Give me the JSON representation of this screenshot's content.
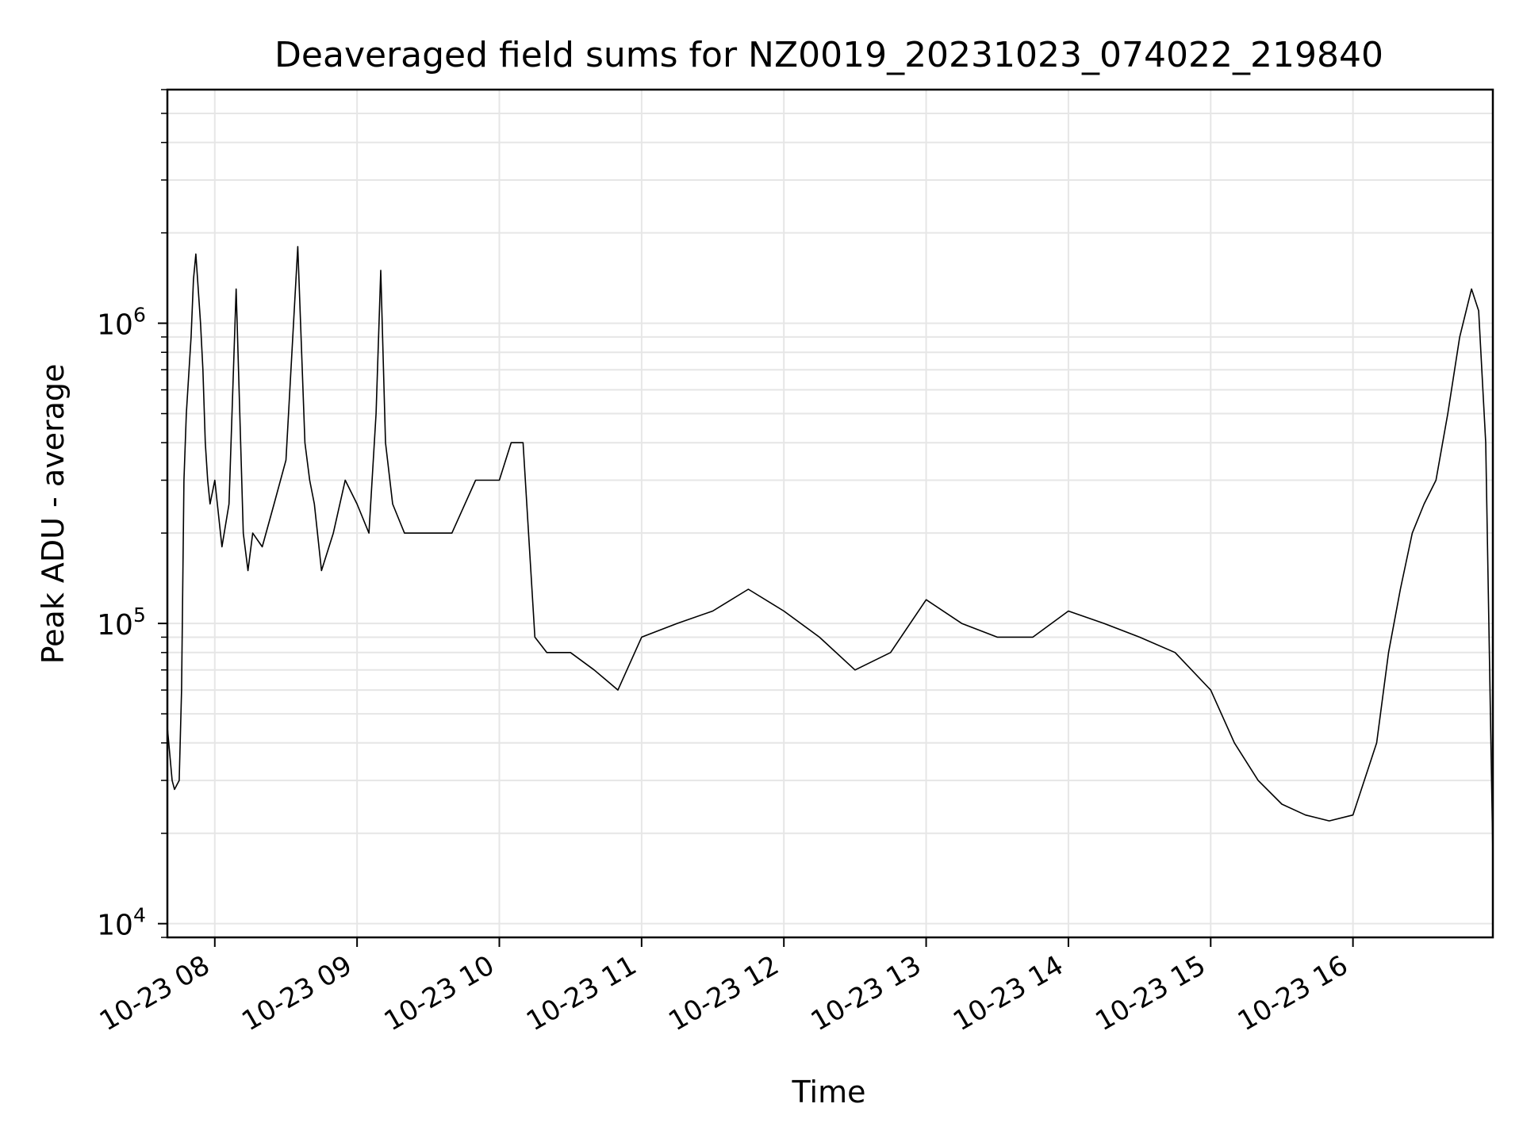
{
  "chart_data": {
    "type": "line",
    "title": "Deaveraged field sums for NZ0019_20231023_074022_219840",
    "xlabel": "Time",
    "ylabel": "Peak ADU - average",
    "yscale": "log",
    "grid": true,
    "colors": {
      "line": "#000000",
      "grid": "#e6e6e6",
      "axes": "#000000"
    },
    "x_ticks": [
      {
        "value": "2023-10-23T08:00",
        "label": "10-23 08"
      },
      {
        "value": "2023-10-23T09:00",
        "label": "10-23 09"
      },
      {
        "value": "2023-10-23T10:00",
        "label": "10-23 10"
      },
      {
        "value": "2023-10-23T11:00",
        "label": "10-23 11"
      },
      {
        "value": "2023-10-23T12:00",
        "label": "10-23 12"
      },
      {
        "value": "2023-10-23T13:00",
        "label": "10-23 13"
      },
      {
        "value": "2023-10-23T14:00",
        "label": "10-23 14"
      },
      {
        "value": "2023-10-23T15:00",
        "label": "10-23 15"
      },
      {
        "value": "2023-10-23T16:00",
        "label": "10-23 16"
      }
    ],
    "xlim": [
      "2023-10-23T07:40",
      "2023-10-23T16:59"
    ],
    "y_ticks": [
      {
        "value": 10000,
        "base": "10",
        "exp": "4"
      },
      {
        "value": 100000,
        "base": "10",
        "exp": "5"
      },
      {
        "value": 1000000,
        "base": "10",
        "exp": "6"
      }
    ],
    "ylim": [
      9000,
      6000000
    ],
    "series": [
      {
        "x": [
          "2023-10-23T07:40",
          "2023-10-23T07:42",
          "2023-10-23T07:43",
          "2023-10-23T07:45",
          "2023-10-23T07:46",
          "2023-10-23T07:47",
          "2023-10-23T07:48",
          "2023-10-23T07:50",
          "2023-10-23T07:51",
          "2023-10-23T07:52",
          "2023-10-23T07:53",
          "2023-10-23T07:54",
          "2023-10-23T07:55",
          "2023-10-23T07:56",
          "2023-10-23T07:57",
          "2023-10-23T07:58",
          "2023-10-23T08:00",
          "2023-10-23T08:03",
          "2023-10-23T08:06",
          "2023-10-23T08:09",
          "2023-10-23T08:12",
          "2023-10-23T08:14",
          "2023-10-23T08:16",
          "2023-10-23T08:20",
          "2023-10-23T08:25",
          "2023-10-23T08:30",
          "2023-10-23T08:35",
          "2023-10-23T08:38",
          "2023-10-23T08:40",
          "2023-10-23T08:42",
          "2023-10-23T08:45",
          "2023-10-23T08:50",
          "2023-10-23T08:55",
          "2023-10-23T09:00",
          "2023-10-23T09:05",
          "2023-10-23T09:08",
          "2023-10-23T09:10",
          "2023-10-23T09:12",
          "2023-10-23T09:15",
          "2023-10-23T09:20",
          "2023-10-23T09:30",
          "2023-10-23T09:40",
          "2023-10-23T09:50",
          "2023-10-23T10:00",
          "2023-10-23T10:05",
          "2023-10-23T10:10",
          "2023-10-23T10:15",
          "2023-10-23T10:20",
          "2023-10-23T10:30",
          "2023-10-23T10:40",
          "2023-10-23T10:50",
          "2023-10-23T11:00",
          "2023-10-23T11:15",
          "2023-10-23T11:30",
          "2023-10-23T11:45",
          "2023-10-23T12:00",
          "2023-10-23T12:15",
          "2023-10-23T12:30",
          "2023-10-23T12:45",
          "2023-10-23T13:00",
          "2023-10-23T13:15",
          "2023-10-23T13:30",
          "2023-10-23T13:45",
          "2023-10-23T14:00",
          "2023-10-23T14:15",
          "2023-10-23T14:30",
          "2023-10-23T14:45",
          "2023-10-23T15:00",
          "2023-10-23T15:10",
          "2023-10-23T15:20",
          "2023-10-23T15:30",
          "2023-10-23T15:40",
          "2023-10-23T15:50",
          "2023-10-23T16:00",
          "2023-10-23T16:10",
          "2023-10-23T16:15",
          "2023-10-23T16:20",
          "2023-10-23T16:25",
          "2023-10-23T16:30",
          "2023-10-23T16:35",
          "2023-10-23T16:40",
          "2023-10-23T16:45",
          "2023-10-23T16:50",
          "2023-10-23T16:53",
          "2023-10-23T16:56",
          "2023-10-23T16:59"
        ],
        "y": [
          45000,
          30000,
          28000,
          30000,
          60000,
          300000,
          500000,
          900000,
          1400000,
          1700000,
          1300000,
          1000000,
          700000,
          400000,
          300000,
          250000,
          300000,
          180000,
          250000,
          1300000,
          200000,
          150000,
          200000,
          180000,
          250000,
          350000,
          1800000,
          400000,
          300000,
          250000,
          150000,
          200000,
          300000,
          250000,
          200000,
          500000,
          1500000,
          400000,
          250000,
          200000,
          200000,
          200000,
          300000,
          300000,
          400000,
          400000,
          90000,
          80000,
          80000,
          70000,
          60000,
          90000,
          100000,
          110000,
          130000,
          110000,
          90000,
          70000,
          80000,
          120000,
          100000,
          90000,
          90000,
          110000,
          100000,
          90000,
          80000,
          60000,
          40000,
          30000,
          25000,
          23000,
          22000,
          23000,
          40000,
          80000,
          130000,
          200000,
          250000,
          300000,
          500000,
          900000,
          1300000,
          1100000,
          400000,
          17000
        ]
      }
    ]
  }
}
